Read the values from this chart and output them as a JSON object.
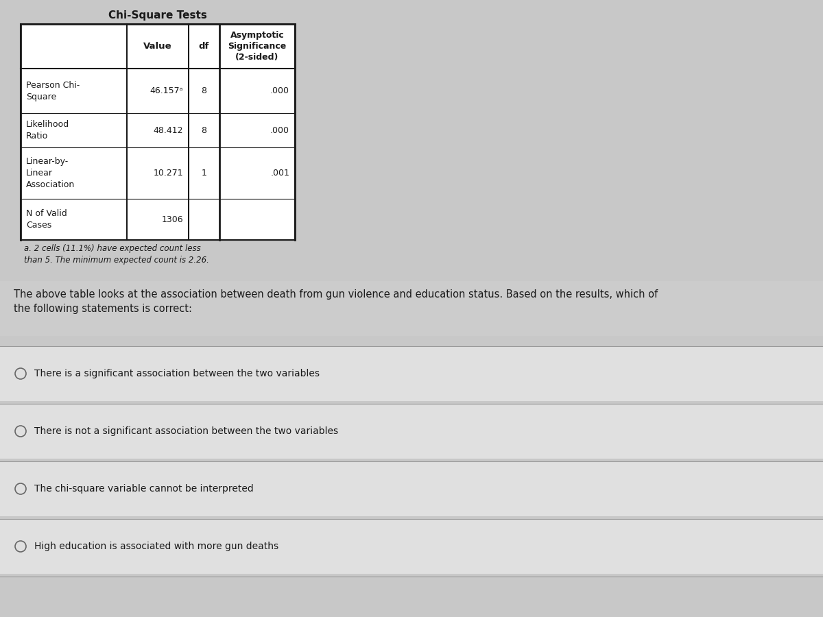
{
  "title": "Chi-Square Tests",
  "table": {
    "col_headers": [
      "",
      "Value",
      "df",
      "Asymptotic\nSignificance\n(2-sided)"
    ],
    "rows": [
      {
        "label": "Pearson Chi-\nSquare",
        "value": "46.157ᵃ",
        "df": "8",
        "sig": ".000"
      },
      {
        "label": "Likelihood\nRatio",
        "value": "48.412",
        "df": "8",
        "sig": ".000"
      },
      {
        "label": "Linear-by-\nLinear\nAssociation",
        "value": "10.271",
        "df": "1",
        "sig": ".001"
      },
      {
        "label": "N of Valid\nCases",
        "value": "1306",
        "df": "",
        "sig": ""
      }
    ]
  },
  "footnote": "a. 2 cells (11.1%) have expected count less\nthan 5. The minimum expected count is 2.26.",
  "question": "The above table looks at the association between death from gun violence and education status. Based on the results, which of\nthe following statements is correct:",
  "options": [
    "There is a significant association between the two variables",
    "There is not a significant association between the two variables",
    "The chi-square variable cannot be interpreted",
    "High education is associated with more gun deaths"
  ],
  "bg_color": "#c8c8c8",
  "table_bg": "#ffffff",
  "border_color": "#1a1a1a",
  "text_color": "#1a1a1a",
  "option_bg": "#e0e0e0",
  "question_bg": "#cccccc",
  "divider_color": "#999999"
}
